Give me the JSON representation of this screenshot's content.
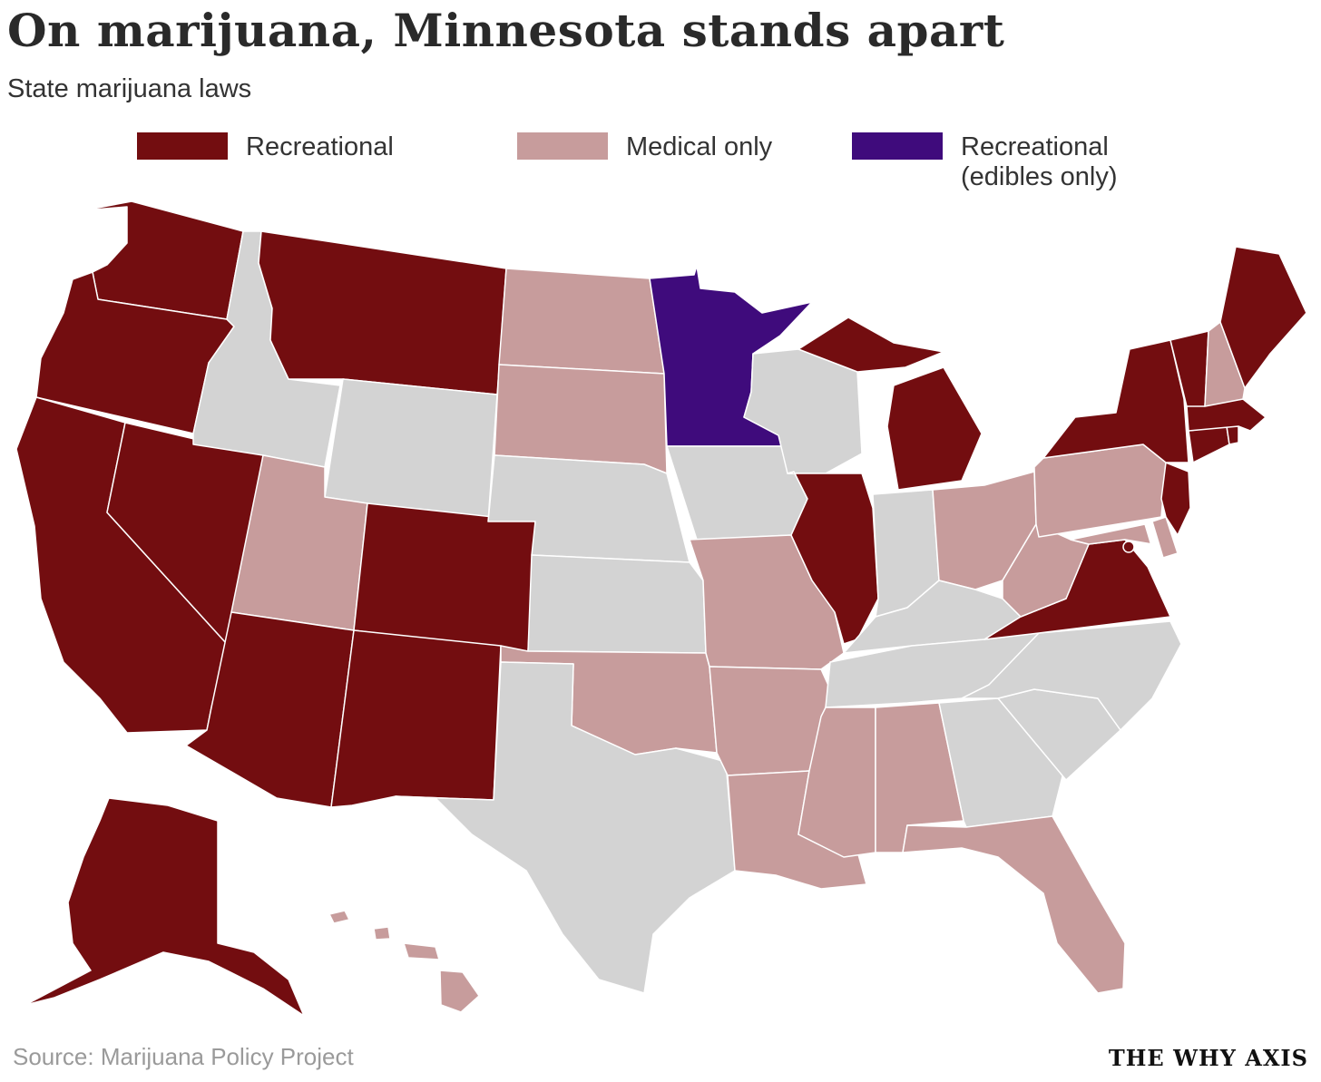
{
  "title": "On marijuana, Minnesota stands apart",
  "subtitle": "State marijuana laws",
  "legend": [
    {
      "key": "recreational",
      "label": "Recreational",
      "color": "#730d10"
    },
    {
      "key": "medical",
      "label": "Medical only",
      "color": "#c79c9c"
    },
    {
      "key": "edibles",
      "label": "Recreational\n(edibles only)",
      "color": "#3f0b7c"
    }
  ],
  "no_law_color": "#d3d3d3",
  "state_status": {
    "WA": "recreational",
    "OR": "recreational",
    "CA": "recreational",
    "NV": "recreational",
    "ID": "none",
    "MT": "recreational",
    "WY": "none",
    "UT": "medical",
    "CO": "recreational",
    "AZ": "recreational",
    "NM": "recreational",
    "ND": "medical",
    "SD": "medical",
    "NE": "none",
    "KS": "none",
    "OK": "medical",
    "TX": "none",
    "MN": "edibles",
    "IA": "none",
    "MO": "medical",
    "AR": "medical",
    "LA": "medical",
    "WI": "none",
    "IL": "recreational",
    "MI": "recreational",
    "IN": "none",
    "OH": "medical",
    "KY": "none",
    "TN": "none",
    "MS": "medical",
    "AL": "medical",
    "GA": "none",
    "FL": "medical",
    "SC": "none",
    "NC": "none",
    "VA": "recreational",
    "WV": "medical",
    "PA": "medical",
    "NY": "recreational",
    "VT": "recreational",
    "NH": "medical",
    "ME": "recreational",
    "MA": "recreational",
    "RI": "recreational",
    "CT": "recreational",
    "NJ": "recreational",
    "DE": "medical",
    "MD": "medical",
    "DC": "recreational",
    "AK": "recreational",
    "HI": "medical"
  },
  "source": "Source: Marijuana Policy Project",
  "brand": "THE WHY AXIS"
}
